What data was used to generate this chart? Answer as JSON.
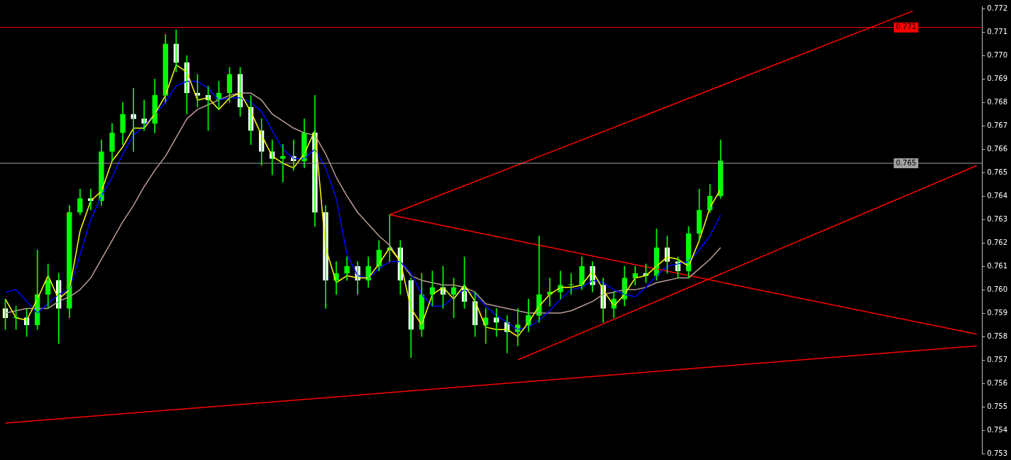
{
  "chart_data": {
    "type": "candlestick",
    "categories": [
      null,
      null,
      null,
      null,
      null,
      null,
      null,
      null,
      null,
      null,
      null,
      null,
      null,
      null,
      null,
      null,
      null,
      null,
      null,
      null,
      null,
      null,
      null,
      null,
      null,
      null,
      null,
      null,
      null,
      null,
      null,
      null,
      null,
      null,
      null,
      null,
      null,
      null,
      null,
      null,
      null,
      null,
      null,
      null,
      null,
      null,
      null,
      null,
      null,
      null,
      null,
      null,
      null,
      null,
      null,
      null,
      null,
      null,
      null,
      null,
      null,
      null,
      null,
      null,
      null,
      null,
      null,
      null,
      null,
      null,
      null,
      null,
      null,
      null,
      null,
      null,
      null,
      null,
      null,
      null,
      null,
      null,
      null,
      null,
      null,
      null,
      null,
      null,
      null,
      null,
      null,
      null
    ],
    "ylim": [
      0.753,
      0.7721
    ],
    "yticks": [
      0.753,
      0.754,
      0.755,
      0.756,
      0.757,
      0.758,
      0.759,
      {
        "value": 0.76,
        "label": "0.760"
      },
      0.761,
      0.762,
      0.763,
      0.764,
      0.765,
      0.766,
      0.767,
      0.768,
      0.769,
      {
        "value": 0.77,
        "label": "0.770"
      },
      0.771,
      0.772
    ],
    "tick_labels": "y",
    "series": [
      {
        "color": "#00ff00",
        "ohlc": [
          [
            0.7592,
            0.7596,
            0.7583,
            0.7588
          ],
          [
            0.7588,
            0.7593,
            0.7583,
            0.7588
          ],
          [
            0.7588,
            0.7592,
            0.758,
            0.7585
          ],
          [
            0.7585,
            0.7617,
            0.7583,
            0.7598
          ],
          [
            0.7598,
            0.7611,
            0.7592,
            0.7604
          ],
          [
            0.7604,
            0.7607,
            0.7577,
            0.7592
          ],
          [
            0.7592,
            0.7636,
            0.7588,
            0.7633
          ],
          [
            0.7633,
            0.7643,
            0.7632,
            0.7639
          ],
          [
            0.7639,
            0.7643,
            0.7634,
            0.7638
          ],
          [
            0.7638,
            0.7664,
            0.7636,
            0.7659
          ],
          [
            0.7659,
            0.7671,
            0.7655,
            0.7667
          ],
          [
            0.7667,
            0.768,
            0.7662,
            0.7675
          ],
          [
            0.7675,
            0.7686,
            0.7659,
            0.7673
          ],
          [
            0.7673,
            0.7681,
            0.7668,
            0.7671
          ],
          [
            0.7671,
            0.769,
            0.7667,
            0.7683
          ],
          [
            0.7683,
            0.7709,
            0.768,
            0.7705
          ],
          [
            0.7705,
            0.7711,
            0.7693,
            0.7697
          ],
          [
            0.7697,
            0.77,
            0.7675,
            0.7684
          ],
          [
            0.7684,
            0.7692,
            0.7678,
            0.7683
          ],
          [
            0.7683,
            0.7687,
            0.7668,
            0.7681
          ],
          [
            0.7681,
            0.7689,
            0.7677,
            0.7684
          ],
          [
            0.7684,
            0.7695,
            0.768,
            0.7692
          ],
          [
            0.7692,
            0.7695,
            0.7674,
            0.7678
          ],
          [
            0.7678,
            0.7683,
            0.7662,
            0.7668
          ],
          [
            0.7668,
            0.7673,
            0.7653,
            0.7659
          ],
          [
            0.7659,
            0.7664,
            0.7649,
            0.7656
          ],
          [
            0.7656,
            0.7662,
            0.7646,
            0.7657
          ],
          [
            0.7657,
            0.7664,
            0.7651,
            0.7655
          ],
          [
            0.7655,
            0.7673,
            0.7652,
            0.7667
          ],
          [
            0.7667,
            0.7683,
            0.7627,
            0.7633
          ],
          [
            0.7633,
            0.7636,
            0.7592,
            0.7604
          ],
          [
            0.7604,
            0.7612,
            0.7598,
            0.7607
          ],
          [
            0.7607,
            0.7614,
            0.7604,
            0.761
          ],
          [
            0.761,
            0.7612,
            0.7598,
            0.7604
          ],
          [
            0.7604,
            0.7614,
            0.7601,
            0.761
          ],
          [
            0.761,
            0.7621,
            0.7608,
            0.7617
          ],
          [
            0.7617,
            0.7632,
            0.7612,
            0.7618
          ],
          [
            0.7618,
            0.7621,
            0.7598,
            0.7604
          ],
          [
            0.7604,
            0.7605,
            0.7571,
            0.7583
          ],
          [
            0.7583,
            0.7607,
            0.758,
            0.7598
          ],
          [
            0.7598,
            0.7608,
            0.7593,
            0.7601
          ],
          [
            0.7601,
            0.761,
            0.7592,
            0.7598
          ],
          [
            0.7598,
            0.7605,
            0.7588,
            0.7601
          ],
          [
            0.7601,
            0.7614,
            0.7592,
            0.7595
          ],
          [
            0.7595,
            0.7599,
            0.758,
            0.7585
          ],
          [
            0.7585,
            0.7592,
            0.7577,
            0.7588
          ],
          [
            0.7588,
            0.7592,
            0.758,
            0.7586
          ],
          [
            0.7586,
            0.7589,
            0.7573,
            0.7582
          ],
          [
            0.7582,
            0.7592,
            0.7576,
            0.7585
          ],
          [
            0.7585,
            0.7596,
            0.7582,
            0.7589
          ],
          [
            0.7589,
            0.7623,
            0.7586,
            0.7598
          ],
          [
            0.7598,
            0.7605,
            0.7593,
            0.7599
          ],
          [
            0.7599,
            0.7608,
            0.7596,
            0.7602
          ],
          [
            0.7602,
            0.7607,
            0.7598,
            0.7602
          ],
          [
            0.7602,
            0.7614,
            0.76,
            0.761
          ],
          [
            0.761,
            0.7612,
            0.7599,
            0.7602
          ],
          [
            0.7602,
            0.7605,
            0.7586,
            0.7592
          ],
          [
            0.7592,
            0.7599,
            0.7588,
            0.7596
          ],
          [
            0.7596,
            0.761,
            0.7593,
            0.7605
          ],
          [
            0.7605,
            0.761,
            0.7602,
            0.7607
          ],
          [
            0.7607,
            0.7611,
            0.7603,
            0.7606
          ],
          [
            0.7606,
            0.7626,
            0.7604,
            0.7618
          ],
          [
            0.7618,
            0.7623,
            0.7607,
            0.7612
          ],
          [
            0.7612,
            0.7614,
            0.7605,
            0.7608
          ],
          [
            0.7608,
            0.7627,
            0.7605,
            0.7624
          ],
          [
            0.7624,
            0.7643,
            0.7621,
            0.7634
          ],
          [
            0.7634,
            0.7645,
            0.7633,
            0.764
          ],
          [
            0.764,
            0.7664,
            0.7639,
            0.7655
          ],
          null,
          null,
          null,
          null,
          null,
          null,
          null,
          null,
          null,
          null,
          null,
          null,
          null,
          null,
          null,
          null,
          null,
          null,
          null,
          null,
          null,
          null,
          null,
          null
        ],
        "colors": [
          "#ffffff",
          "#00ff00",
          "#ffffff",
          "#00ff00",
          "#00ff00",
          "#ffffff",
          "#00ff00",
          "#00ff00",
          "#ffffff",
          "#00ff00",
          "#00ff00",
          "#00ff00",
          "#ffffff",
          "#ffffff",
          "#00ff00",
          "#00ff00",
          "#ffffff",
          "#ffffff",
          "#ffffff",
          "#ffffff",
          "#00ff00",
          "#00ff00",
          "#ffffff",
          "#ffffff",
          "#ffffff",
          "#ffffff",
          "#00ff00",
          "#ffffff",
          "#00ff00",
          "#ffffff",
          "#ffffff",
          "#00ff00",
          "#00ff00",
          "#ffffff",
          "#00ff00",
          "#00ff00",
          "#00ff00",
          "#ffffff",
          "#ffffff",
          "#00ff00",
          "#00ff00",
          "#ffffff",
          "#00ff00",
          "#ffffff",
          "#ffffff",
          "#00ff00",
          "#ffffff",
          "#ffffff",
          "#00ff00",
          "#00ff00",
          "#00ff00",
          "#00ff00",
          "#00ff00",
          "#00ff00",
          "#00ff00",
          "#ffffff",
          "#ffffff",
          "#00ff00",
          "#00ff00",
          "#00ff00",
          "#ffffff",
          "#00ff00",
          "#ffffff",
          "#ffffff",
          "#00ff00",
          "#00ff00",
          "#00ff00",
          "#00ff00",
          null,
          null,
          null,
          null,
          null,
          null,
          null,
          null,
          null,
          null,
          null,
          null,
          null,
          null,
          null,
          null,
          null,
          null,
          null,
          null,
          null,
          null,
          null,
          null
        ]
      },
      {
        "type": "line",
        "color": "#ffff00",
        "values": [
          0.7596,
          0.7588,
          0.7587,
          0.7596,
          0.7606,
          0.7596,
          0.76,
          0.7625,
          0.7638,
          0.7642,
          0.7655,
          0.7661,
          0.7669,
          0.7669,
          0.7675,
          0.7683,
          0.7696,
          0.7693,
          0.7681,
          0.7682,
          0.7677,
          0.7682,
          0.7684,
          0.7676,
          0.7666,
          0.7657,
          0.7654,
          0.7652,
          0.7658,
          0.7668,
          0.7618,
          0.7603,
          0.7606,
          0.7605,
          0.7605,
          0.7611,
          0.7618,
          0.7612,
          0.7592,
          0.7585,
          0.7598,
          0.7601,
          0.7596,
          0.7602,
          0.7595,
          0.7584,
          0.7583,
          0.7583,
          0.758,
          0.7586,
          0.7593,
          0.7598,
          0.7601,
          0.7601,
          0.7602,
          0.7608,
          0.76,
          0.7593,
          0.7598,
          0.7605,
          0.7606,
          0.761,
          0.7614,
          0.7613,
          0.761,
          0.7621,
          0.7635,
          0.7643,
          null,
          null,
          null,
          null,
          null,
          null,
          null,
          null,
          null,
          null,
          null,
          null,
          null,
          null,
          null,
          null,
          null,
          null,
          null,
          null,
          null,
          null,
          null,
          null
        ]
      },
      {
        "type": "line",
        "color": "#0000ff",
        "values": [
          0.7599,
          0.76,
          0.7595,
          0.759,
          0.7594,
          0.7598,
          0.76,
          0.7615,
          0.763,
          0.764,
          0.7648,
          0.7658,
          0.7666,
          0.767,
          0.7675,
          0.768,
          0.7687,
          0.7689,
          0.7689,
          0.7686,
          0.7681,
          0.7682,
          0.7682,
          0.768,
          0.7676,
          0.7668,
          0.766,
          0.7656,
          0.7656,
          0.766,
          0.7652,
          0.7639,
          0.7615,
          0.7606,
          0.7605,
          0.7609,
          0.7612,
          0.7612,
          0.7607,
          0.7598,
          0.7593,
          0.7593,
          0.7597,
          0.76,
          0.7598,
          0.7593,
          0.7589,
          0.7586,
          0.7583,
          0.7584,
          0.7587,
          0.7591,
          0.7596,
          0.76,
          0.7601,
          0.7604,
          0.7603,
          0.76,
          0.7598,
          0.7597,
          0.7601,
          0.7606,
          0.761,
          0.7611,
          0.7612,
          0.7617,
          0.7623,
          0.7632,
          null,
          null,
          null,
          null,
          null,
          null,
          null,
          null,
          null,
          null,
          null,
          null,
          null,
          null,
          null,
          null,
          null,
          null,
          null,
          null,
          null,
          null,
          null,
          null
        ]
      },
      {
        "type": "line",
        "color": "#bc9d96",
        "values": [
          0.759,
          0.7591,
          0.7592,
          0.7592,
          0.7592,
          0.7595,
          0.7597,
          0.76,
          0.7605,
          0.7613,
          0.7621,
          0.7629,
          0.7636,
          0.7644,
          0.7651,
          0.7657,
          0.7665,
          0.7673,
          0.7677,
          0.7679,
          0.7681,
          0.7683,
          0.7684,
          0.7684,
          0.7681,
          0.7675,
          0.7672,
          0.7669,
          0.7667,
          0.7666,
          0.7658,
          0.7648,
          0.764,
          0.7633,
          0.7628,
          0.7623,
          0.7619,
          0.7612,
          0.7606,
          0.7604,
          0.7603,
          0.7602,
          0.7602,
          0.7601,
          0.7599,
          0.7594,
          0.7593,
          0.7592,
          0.7591,
          0.759,
          0.759,
          0.759,
          0.759,
          0.7591,
          0.7593,
          0.7595,
          0.7598,
          0.7599,
          0.76,
          0.76,
          0.7601,
          0.7603,
          0.7604,
          0.7605,
          0.7605,
          0.7609,
          0.7613,
          0.7618,
          null,
          null,
          null,
          null,
          null,
          null,
          null,
          null,
          null,
          null,
          null,
          null,
          null,
          null,
          null,
          null,
          null,
          null,
          null,
          null,
          null,
          null,
          null,
          null
        ]
      },
      {
        "type": "line",
        "color": "#ff0000",
        "values": [
          null,
          null,
          null,
          null,
          null,
          null,
          null,
          null,
          null,
          null,
          null,
          null,
          null,
          null,
          null,
          null,
          null,
          null,
          null,
          null,
          null,
          null,
          null,
          null,
          null,
          null,
          null,
          null,
          null,
          null,
          null,
          null,
          null,
          null,
          null,
          null,
          0.7632,
          null,
          null,
          null,
          null,
          null,
          null,
          null,
          null,
          null,
          null,
          null,
          null,
          null,
          null,
          null,
          null,
          null,
          null,
          null,
          null,
          null,
          null,
          null,
          null,
          null,
          null,
          null,
          null,
          null,
          null,
          null,
          null,
          null,
          null,
          null,
          null,
          null,
          null,
          null,
          null,
          null,
          null,
          null,
          null,
          null,
          null,
          null,
          null,
          0.7719,
          null,
          null,
          null,
          null,
          null,
          null
        ]
      },
      {
        "type": "line",
        "color": "#ff0000",
        "values": [
          null,
          null,
          null,
          null,
          null,
          null,
          null,
          null,
          null,
          null,
          null,
          null,
          null,
          null,
          null,
          null,
          null,
          null,
          null,
          null,
          null,
          null,
          null,
          null,
          null,
          null,
          null,
          null,
          null,
          null,
          null,
          null,
          null,
          null,
          null,
          null,
          0.7632,
          null,
          null,
          null,
          null,
          null,
          null,
          null,
          null,
          null,
          null,
          null,
          null,
          null,
          null,
          null,
          null,
          null,
          null,
          null,
          null,
          null,
          null,
          null,
          null,
          null,
          null,
          null,
          null,
          null,
          null,
          null,
          null,
          null,
          null,
          null,
          null,
          null,
          null,
          null,
          null,
          null,
          null,
          null,
          null,
          null,
          null,
          null,
          null,
          null,
          null,
          null,
          null,
          null,
          null,
          0.7581
        ]
      },
      {
        "type": "line",
        "color": "#ff0000",
        "values": [
          null,
          null,
          null,
          null,
          null,
          null,
          null,
          null,
          null,
          null,
          null,
          null,
          null,
          null,
          null,
          null,
          null,
          null,
          null,
          null,
          null,
          null,
          null,
          null,
          null,
          null,
          null,
          null,
          null,
          null,
          null,
          null,
          null,
          null,
          null,
          null,
          null,
          null,
          null,
          null,
          null,
          null,
          null,
          null,
          null,
          null,
          null,
          null,
          0.757,
          null,
          null,
          null,
          null,
          null,
          null,
          null,
          null,
          null,
          null,
          null,
          null,
          null,
          null,
          null,
          null,
          null,
          null,
          null,
          null,
          null,
          null,
          null,
          null,
          null,
          null,
          null,
          null,
          null,
          null,
          null,
          null,
          null,
          null,
          null,
          null,
          null,
          null,
          null,
          null,
          null,
          null,
          0.7653
        ]
      },
      {
        "type": "line",
        "color": "#ff0000",
        "values": [
          0.7543,
          null,
          null,
          null,
          null,
          null,
          null,
          null,
          null,
          null,
          null,
          null,
          null,
          null,
          null,
          null,
          null,
          null,
          null,
          null,
          null,
          null,
          null,
          null,
          null,
          null,
          null,
          null,
          null,
          null,
          null,
          null,
          null,
          null,
          null,
          null,
          null,
          null,
          null,
          null,
          null,
          null,
          null,
          null,
          null,
          null,
          null,
          null,
          null,
          null,
          null,
          null,
          null,
          null,
          null,
          null,
          null,
          null,
          null,
          null,
          null,
          null,
          null,
          null,
          null,
          null,
          null,
          null,
          null,
          null,
          null,
          null,
          null,
          null,
          null,
          null,
          null,
          null,
          null,
          null,
          null,
          null,
          null,
          null,
          null,
          null,
          null,
          null,
          null,
          null,
          null,
          0.7576
        ]
      }
    ],
    "ref_lines": [
      {
        "axis": "y",
        "value": 0.7712,
        "label": "0.771",
        "color": "#ff0000"
      },
      {
        "axis": "y",
        "value": 0.7654,
        "label": "0.765",
        "color": "#a0a0a0"
      }
    ]
  }
}
